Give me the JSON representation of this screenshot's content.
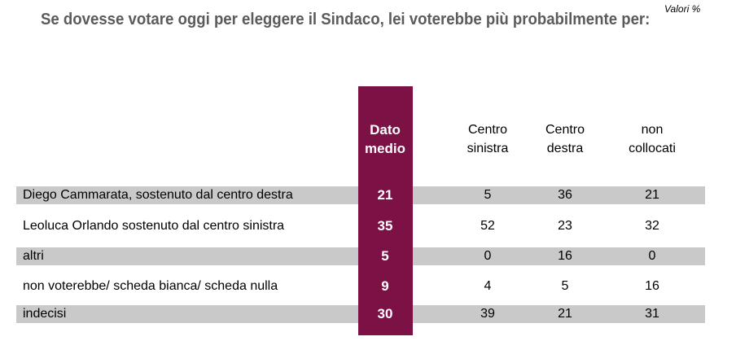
{
  "title": "Se dovesse votare oggi per eleggere il Sindaco, lei voterebbe più probabilmente per:",
  "units": "Valori %",
  "highlight_color": "#7c1145",
  "band_color": "#c9c9c9",
  "chart_data": {
    "type": "table",
    "columns": [
      "Dato medio",
      "Centro sinistra",
      "Centro destra",
      "non collocati"
    ],
    "column_headers": [
      "Dato\nmedio",
      "Centro\nsinistra",
      "Centro\ndestra",
      "non\ncollocati"
    ],
    "rows": [
      {
        "label": "Diego Cammarata, sostenuto dal centro destra",
        "values": [
          "21",
          "5",
          "36",
          "21"
        ]
      },
      {
        "label": "Leoluca Orlando sostenuto dal centro sinistra",
        "values": [
          "35",
          "52",
          "23",
          "32"
        ]
      },
      {
        "label": "altri",
        "values": [
          "5",
          "0",
          "16",
          "0"
        ]
      },
      {
        "label": "non voterebbe/ scheda bianca/ scheda nulla",
        "values": [
          "9",
          "4",
          "5",
          "16"
        ]
      },
      {
        "label": "indecisi",
        "values": [
          "30",
          "39",
          "21",
          "31"
        ]
      }
    ]
  }
}
